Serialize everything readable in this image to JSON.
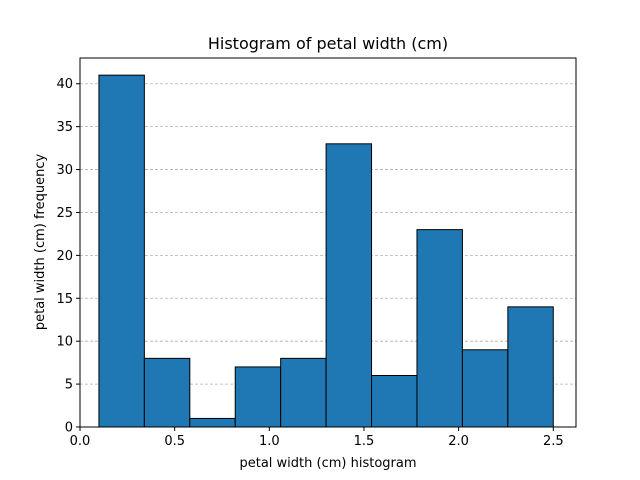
{
  "chart_data": {
    "type": "bar",
    "title": "Histogram of petal width (cm)",
    "xlabel": "petal width (cm) histogram",
    "ylabel": "petal width (cm) frequency",
    "xlim": [
      0.0,
      2.62
    ],
    "ylim": [
      0,
      43
    ],
    "x_ticks": [
      0.0,
      0.5,
      1.0,
      1.5,
      2.0,
      2.5
    ],
    "x_tick_labels": [
      "0.0",
      "0.5",
      "1.0",
      "1.5",
      "2.0",
      "2.5"
    ],
    "y_ticks": [
      0,
      5,
      10,
      15,
      20,
      25,
      30,
      35,
      40
    ],
    "y_tick_labels": [
      "0",
      "5",
      "10",
      "15",
      "20",
      "25",
      "30",
      "35",
      "40"
    ],
    "bin_edges": [
      0.1,
      0.34,
      0.58,
      0.82,
      1.06,
      1.3,
      1.54,
      1.78,
      2.02,
      2.26,
      2.5
    ],
    "values": [
      41,
      8,
      1,
      7,
      8,
      33,
      6,
      23,
      9,
      14
    ],
    "grid": "y-dashed",
    "bar_color": "#1f77b4",
    "edge_color": "#000000",
    "grid_color": "#b0b0b0"
  }
}
